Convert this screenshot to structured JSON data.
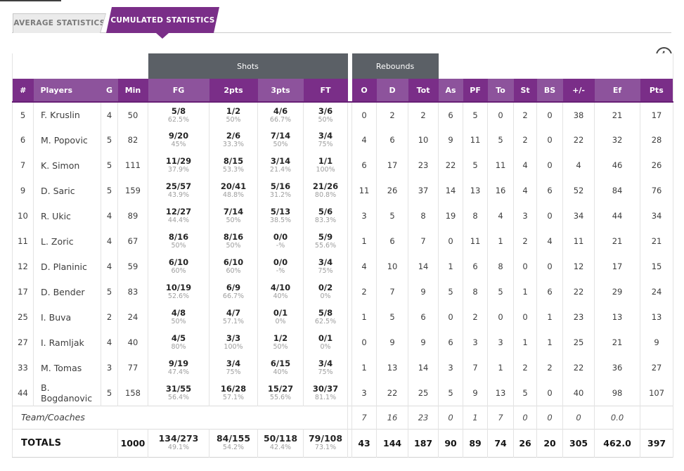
{
  "tabs": [
    {
      "label": "AVERAGE STATISTICS",
      "active": false
    },
    {
      "label": "CUMULATED STATISTICS",
      "active": true
    }
  ],
  "info_icon_glyph": "i",
  "group_headers": {
    "shots": "Shots",
    "rebounds": "Rebounds"
  },
  "columns": [
    {
      "key": "num",
      "label": "#"
    },
    {
      "key": "name",
      "label": "Players"
    },
    {
      "key": "g",
      "label": "G"
    },
    {
      "key": "min",
      "label": "Min"
    },
    {
      "key": "fg",
      "label": "FG"
    },
    {
      "key": "pts2",
      "label": "2pts"
    },
    {
      "key": "pts3",
      "label": "3pts"
    },
    {
      "key": "ft",
      "label": "FT"
    },
    {
      "key": "reb_o",
      "label": "O"
    },
    {
      "key": "reb_d",
      "label": "D"
    },
    {
      "key": "reb_tot",
      "label": "Tot"
    },
    {
      "key": "as",
      "label": "As"
    },
    {
      "key": "pf",
      "label": "PF"
    },
    {
      "key": "to",
      "label": "To"
    },
    {
      "key": "st",
      "label": "St"
    },
    {
      "key": "bs",
      "label": "BS"
    },
    {
      "key": "plus_minus",
      "label": "+/-"
    },
    {
      "key": "ef",
      "label": "Ef"
    },
    {
      "key": "pts",
      "label": "Pts"
    }
  ],
  "players": [
    {
      "num": "5",
      "name": "F. Kruslin",
      "g": "4",
      "min": "50",
      "fg": [
        "5/8",
        "62.5%"
      ],
      "pts2": [
        "1/2",
        "50%"
      ],
      "pts3": [
        "4/6",
        "66.7%"
      ],
      "ft": [
        "3/6",
        "50%"
      ],
      "reb_o": "0",
      "reb_d": "2",
      "reb_tot": "2",
      "as": "6",
      "pf": "5",
      "to": "0",
      "st": "2",
      "bs": "0",
      "plus_minus": "38",
      "ef": "21",
      "pts": "17"
    },
    {
      "num": "6",
      "name": "M. Popovic",
      "g": "5",
      "min": "82",
      "fg": [
        "9/20",
        "45%"
      ],
      "pts2": [
        "2/6",
        "33.3%"
      ],
      "pts3": [
        "7/14",
        "50%"
      ],
      "ft": [
        "3/4",
        "75%"
      ],
      "reb_o": "4",
      "reb_d": "6",
      "reb_tot": "10",
      "as": "9",
      "pf": "11",
      "to": "5",
      "st": "2",
      "bs": "0",
      "plus_minus": "22",
      "ef": "32",
      "pts": "28"
    },
    {
      "num": "7",
      "name": "K. Simon",
      "g": "5",
      "min": "111",
      "fg": [
        "11/29",
        "37.9%"
      ],
      "pts2": [
        "8/15",
        "53.3%"
      ],
      "pts3": [
        "3/14",
        "21.4%"
      ],
      "ft": [
        "1/1",
        "100%"
      ],
      "reb_o": "6",
      "reb_d": "17",
      "reb_tot": "23",
      "as": "22",
      "pf": "5",
      "to": "11",
      "st": "4",
      "bs": "0",
      "plus_minus": "4",
      "ef": "46",
      "pts": "26"
    },
    {
      "num": "9",
      "name": "D. Saric",
      "g": "5",
      "min": "159",
      "fg": [
        "25/57",
        "43.9%"
      ],
      "pts2": [
        "20/41",
        "48.8%"
      ],
      "pts3": [
        "5/16",
        "31.2%"
      ],
      "ft": [
        "21/26",
        "80.8%"
      ],
      "reb_o": "11",
      "reb_d": "26",
      "reb_tot": "37",
      "as": "14",
      "pf": "13",
      "to": "16",
      "st": "4",
      "bs": "6",
      "plus_minus": "52",
      "ef": "84",
      "pts": "76"
    },
    {
      "num": "10",
      "name": "R. Ukic",
      "g": "4",
      "min": "89",
      "fg": [
        "12/27",
        "44.4%"
      ],
      "pts2": [
        "7/14",
        "50%"
      ],
      "pts3": [
        "5/13",
        "38.5%"
      ],
      "ft": [
        "5/6",
        "83.3%"
      ],
      "reb_o": "3",
      "reb_d": "5",
      "reb_tot": "8",
      "as": "19",
      "pf": "8",
      "to": "4",
      "st": "3",
      "bs": "0",
      "plus_minus": "34",
      "ef": "44",
      "pts": "34"
    },
    {
      "num": "11",
      "name": "L. Zoric",
      "g": "4",
      "min": "67",
      "fg": [
        "8/16",
        "50%"
      ],
      "pts2": [
        "8/16",
        "50%"
      ],
      "pts3": [
        "0/0",
        "-%"
      ],
      "ft": [
        "5/9",
        "55.6%"
      ],
      "reb_o": "1",
      "reb_d": "6",
      "reb_tot": "7",
      "as": "0",
      "pf": "11",
      "to": "1",
      "st": "2",
      "bs": "4",
      "plus_minus": "11",
      "ef": "21",
      "pts": "21"
    },
    {
      "num": "12",
      "name": "D. Planinic",
      "g": "4",
      "min": "59",
      "fg": [
        "6/10",
        "60%"
      ],
      "pts2": [
        "6/10",
        "60%"
      ],
      "pts3": [
        "0/0",
        "-%"
      ],
      "ft": [
        "3/4",
        "75%"
      ],
      "reb_o": "4",
      "reb_d": "10",
      "reb_tot": "14",
      "as": "1",
      "pf": "6",
      "to": "8",
      "st": "0",
      "bs": "0",
      "plus_minus": "12",
      "ef": "17",
      "pts": "15"
    },
    {
      "num": "17",
      "name": "D. Bender",
      "g": "5",
      "min": "83",
      "fg": [
        "10/19",
        "52.6%"
      ],
      "pts2": [
        "6/9",
        "66.7%"
      ],
      "pts3": [
        "4/10",
        "40%"
      ],
      "ft": [
        "0/2",
        "0%"
      ],
      "reb_o": "2",
      "reb_d": "7",
      "reb_tot": "9",
      "as": "5",
      "pf": "8",
      "to": "5",
      "st": "1",
      "bs": "6",
      "plus_minus": "22",
      "ef": "29",
      "pts": "24"
    },
    {
      "num": "25",
      "name": "I. Buva",
      "g": "2",
      "min": "24",
      "fg": [
        "4/8",
        "50%"
      ],
      "pts2": [
        "4/7",
        "57.1%"
      ],
      "pts3": [
        "0/1",
        "0%"
      ],
      "ft": [
        "5/8",
        "62.5%"
      ],
      "reb_o": "1",
      "reb_d": "5",
      "reb_tot": "6",
      "as": "0",
      "pf": "2",
      "to": "0",
      "st": "0",
      "bs": "1",
      "plus_minus": "23",
      "ef": "13",
      "pts": "13"
    },
    {
      "num": "27",
      "name": "I. Ramljak",
      "g": "4",
      "min": "40",
      "fg": [
        "4/5",
        "80%"
      ],
      "pts2": [
        "3/3",
        "100%"
      ],
      "pts3": [
        "1/2",
        "50%"
      ],
      "ft": [
        "0/1",
        "0%"
      ],
      "reb_o": "0",
      "reb_d": "9",
      "reb_tot": "9",
      "as": "6",
      "pf": "3",
      "to": "3",
      "st": "1",
      "bs": "1",
      "plus_minus": "25",
      "ef": "21",
      "pts": "9"
    },
    {
      "num": "33",
      "name": "M. Tomas",
      "g": "3",
      "min": "77",
      "fg": [
        "9/19",
        "47.4%"
      ],
      "pts2": [
        "3/4",
        "75%"
      ],
      "pts3": [
        "6/15",
        "40%"
      ],
      "ft": [
        "3/4",
        "75%"
      ],
      "reb_o": "1",
      "reb_d": "13",
      "reb_tot": "14",
      "as": "3",
      "pf": "7",
      "to": "1",
      "st": "2",
      "bs": "2",
      "plus_minus": "22",
      "ef": "36",
      "pts": "27"
    },
    {
      "num": "44",
      "name": "B. Bogdanovic",
      "g": "5",
      "min": "158",
      "fg": [
        "31/55",
        "56.4%"
      ],
      "pts2": [
        "16/28",
        "57.1%"
      ],
      "pts3": [
        "15/27",
        "55.6%"
      ],
      "ft": [
        "30/37",
        "81.1%"
      ],
      "reb_o": "3",
      "reb_d": "22",
      "reb_tot": "25",
      "as": "5",
      "pf": "9",
      "to": "13",
      "st": "5",
      "bs": "0",
      "plus_minus": "40",
      "ef": "98",
      "pts": "107"
    }
  ],
  "team_row": {
    "label": "Team/Coaches",
    "reb_o": "7",
    "reb_d": "16",
    "reb_tot": "23",
    "as": "0",
    "pf": "1",
    "to": "7",
    "st": "0",
    "bs": "0",
    "plus_minus": "0",
    "ef": "0.0",
    "pts": ""
  },
  "totals_row": {
    "label": "TOTALS",
    "min": "1000",
    "fg": [
      "134/273",
      "49.1%"
    ],
    "pts2": [
      "84/155",
      "54.2%"
    ],
    "pts3": [
      "50/118",
      "42.4%"
    ],
    "ft": [
      "79/108",
      "73.1%"
    ],
    "reb_o": "43",
    "reb_d": "144",
    "reb_tot": "187",
    "as": "90",
    "pf": "89",
    "to": "74",
    "st": "26",
    "bs": "20",
    "plus_minus": "305",
    "ef": "462.0",
    "pts": "397"
  },
  "colors": {
    "header_dark_purple": "#7a2e88",
    "header_light_purple": "#8d539c",
    "group_header_gray": "#5b6066",
    "active_tab_purple": "#7a2e88",
    "inactive_tab_gray": "#ebebeb"
  }
}
